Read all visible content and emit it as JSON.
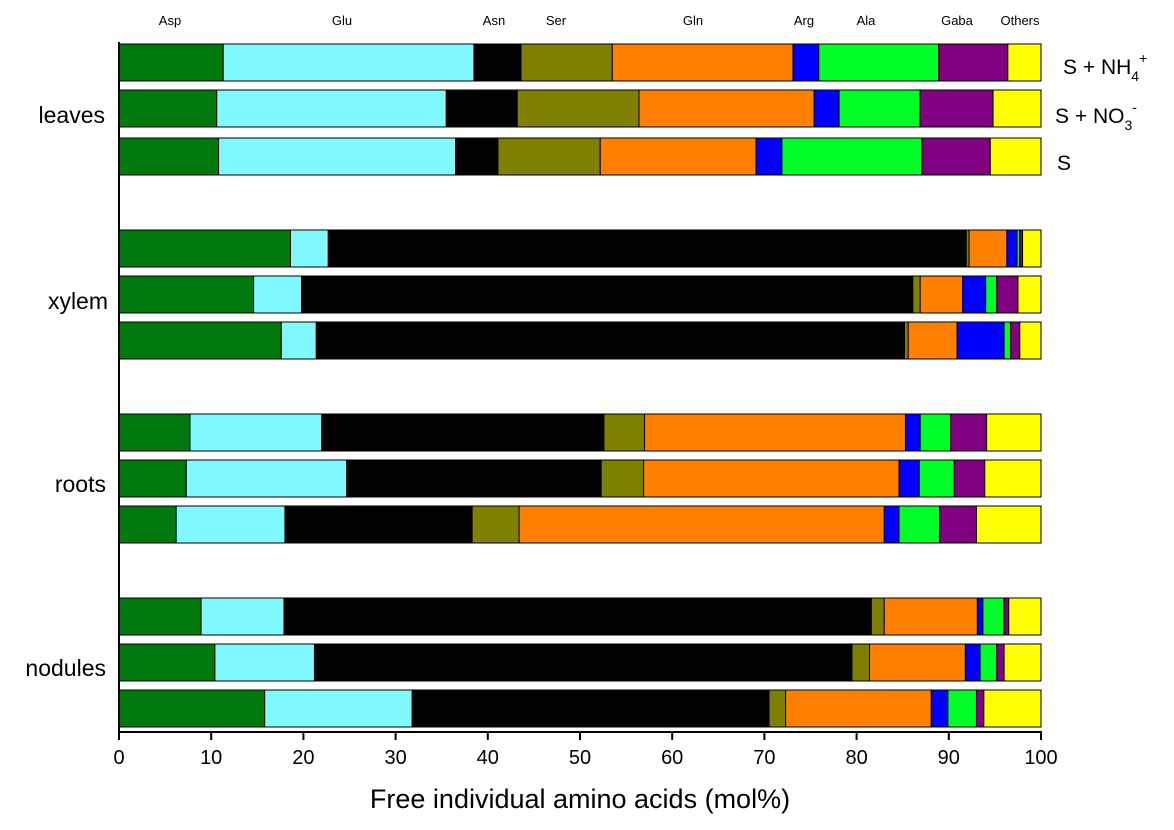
{
  "chart_data": {
    "type": "bar",
    "orientation": "horizontal",
    "stacked": true,
    "title": "",
    "xlabel": "Free individual amino acids (mol%)",
    "ylabel": "",
    "xlim": [
      0,
      100
    ],
    "x_ticks": [
      "0",
      "10",
      "20",
      "30",
      "40",
      "50",
      "60",
      "70",
      "80",
      "90",
      "100"
    ],
    "grid": false,
    "legend": "top (category names above the bars)",
    "categories": [
      "Asp",
      "Glu",
      "Asn",
      "Ser",
      "Gln",
      "Arg",
      "Ala",
      "Gaba",
      "Others"
    ],
    "colors": [
      "#007a0f",
      "#7ff8ff",
      "#000000",
      "#808000",
      "#ff8000",
      "#0000ff",
      "#00ff28",
      "#800080",
      "#ffff00"
    ],
    "treatments": [
      {
        "base": "S + NH",
        "sub": "4",
        "sup": "+"
      },
      {
        "base": "S + NO",
        "sub": "3",
        "sup": "-"
      },
      {
        "base": "S",
        "sub": "",
        "sup": ""
      }
    ],
    "groups": [
      {
        "name": "leaves",
        "bars": [
          {
            "treatment": "S + NH4+",
            "values": [
              11.3,
              27.2,
              5.1,
              9.9,
              19.6,
              2.8,
              13.0,
              7.5,
              3.6
            ]
          },
          {
            "treatment": "S + NO3-",
            "values": [
              10.6,
              24.9,
              7.7,
              13.2,
              19.0,
              2.7,
              8.8,
              7.9,
              5.2
            ]
          },
          {
            "treatment": "S",
            "values": [
              10.8,
              25.7,
              4.6,
              11.1,
              16.9,
              2.8,
              15.2,
              7.4,
              5.5
            ]
          }
        ]
      },
      {
        "name": "xylem",
        "bars": [
          {
            "treatment": "S + NH4+",
            "values": [
              18.6,
              4.1,
              69.2,
              0.3,
              4.1,
              1.1,
              0.3,
              0.3,
              2.0
            ]
          },
          {
            "treatment": "S + NO3-",
            "values": [
              14.6,
              5.2,
              66.3,
              0.8,
              4.6,
              2.5,
              1.2,
              2.3,
              2.5
            ]
          },
          {
            "treatment": "S",
            "values": [
              17.6,
              3.8,
              63.8,
              0.4,
              5.3,
              5.1,
              0.7,
              1.0,
              2.3
            ]
          }
        ]
      },
      {
        "name": "roots",
        "bars": [
          {
            "treatment": "S + NH4+",
            "values": [
              7.7,
              14.3,
              30.6,
              4.4,
              28.3,
              1.6,
              3.3,
              3.9,
              5.9
            ]
          },
          {
            "treatment": "S + NO3-",
            "values": [
              7.3,
              17.4,
              27.6,
              4.6,
              27.7,
              2.2,
              3.8,
              3.3,
              6.1
            ]
          },
          {
            "treatment": "S",
            "values": [
              6.2,
              11.8,
              20.3,
              5.1,
              39.6,
              1.6,
              4.4,
              4.0,
              7.0
            ]
          }
        ]
      },
      {
        "name": "nodules",
        "bars": [
          {
            "treatment": "S + NH4+",
            "values": [
              8.9,
              9.0,
              63.7,
              1.4,
              10.1,
              0.6,
              2.3,
              0.5,
              3.5
            ]
          },
          {
            "treatment": "S + NO3-",
            "values": [
              10.4,
              10.8,
              58.3,
              1.9,
              10.4,
              1.6,
              1.8,
              0.8,
              4.0
            ]
          },
          {
            "treatment": "S",
            "values": [
              15.8,
              16.0,
              38.7,
              1.8,
              15.8,
              1.8,
              3.1,
              0.8,
              6.2
            ]
          }
        ]
      }
    ]
  }
}
